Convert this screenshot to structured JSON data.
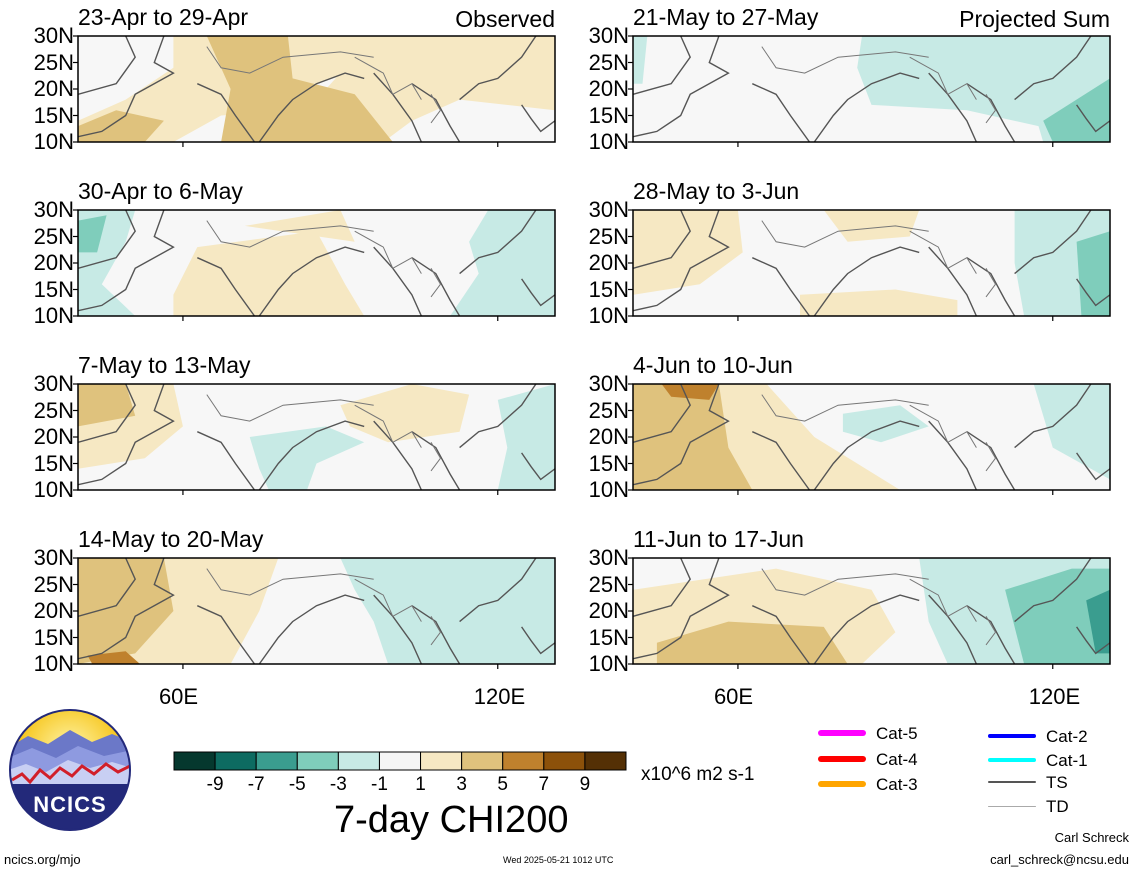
{
  "panels": [
    {
      "title": "23-Apr to 29-Apr",
      "tag": "Observed",
      "pattern": 0
    },
    {
      "title": "30-Apr to 6-May",
      "tag": "",
      "pattern": 1
    },
    {
      "title": "7-May to 13-May",
      "tag": "",
      "pattern": 2
    },
    {
      "title": "14-May to 20-May",
      "tag": "",
      "pattern": 3
    },
    {
      "title": "21-May to 27-May",
      "tag": "Projected Sum",
      "pattern": 4
    },
    {
      "title": "28-May to 3-Jun",
      "tag": "",
      "pattern": 5
    },
    {
      "title": "4-Jun to 10-Jun",
      "tag": "",
      "pattern": 6
    },
    {
      "title": "11-Jun to 17-Jun",
      "tag": "",
      "pattern": 7
    }
  ],
  "y_ticks": [
    "30N",
    "25N",
    "20N",
    "15N",
    "10N"
  ],
  "x_ticks": [
    "60E",
    "120E"
  ],
  "colorbar": {
    "colors": [
      "#05382e",
      "#0d6b61",
      "#3a9d8f",
      "#7fcdbb",
      "#c7eae5",
      "#f5f5f5",
      "#f6e8c3",
      "#dfc27d",
      "#bf812d",
      "#8c510a",
      "#543005"
    ],
    "labels": [
      "-9",
      "-7",
      "-5",
      "-3",
      "-1",
      "1",
      "3",
      "5",
      "7",
      "9"
    ],
    "units": "x10^6 m2 s-1"
  },
  "main_title": "7-day CHI200",
  "logo_text": "NCICS",
  "legend": [
    {
      "label": "Cat-5",
      "color": "#ff00ff"
    },
    {
      "label": "Cat-4",
      "color": "#ff0000"
    },
    {
      "label": "Cat-3",
      "color": "#ffa500"
    },
    {
      "label": "Cat-2",
      "color": "#0000ff"
    },
    {
      "label": "Cat-1",
      "color": "#00ffff"
    },
    {
      "label": "TS",
      "color": "#555555"
    },
    {
      "label": "TD",
      "color": "#aaaaaa"
    }
  ],
  "footer": {
    "left": "ncics.org/mjo",
    "center": "Wed 2025-05-21 1012 UTC",
    "author": "Carl Schreck",
    "email": "carl_schreck@ncsu.edu"
  }
}
